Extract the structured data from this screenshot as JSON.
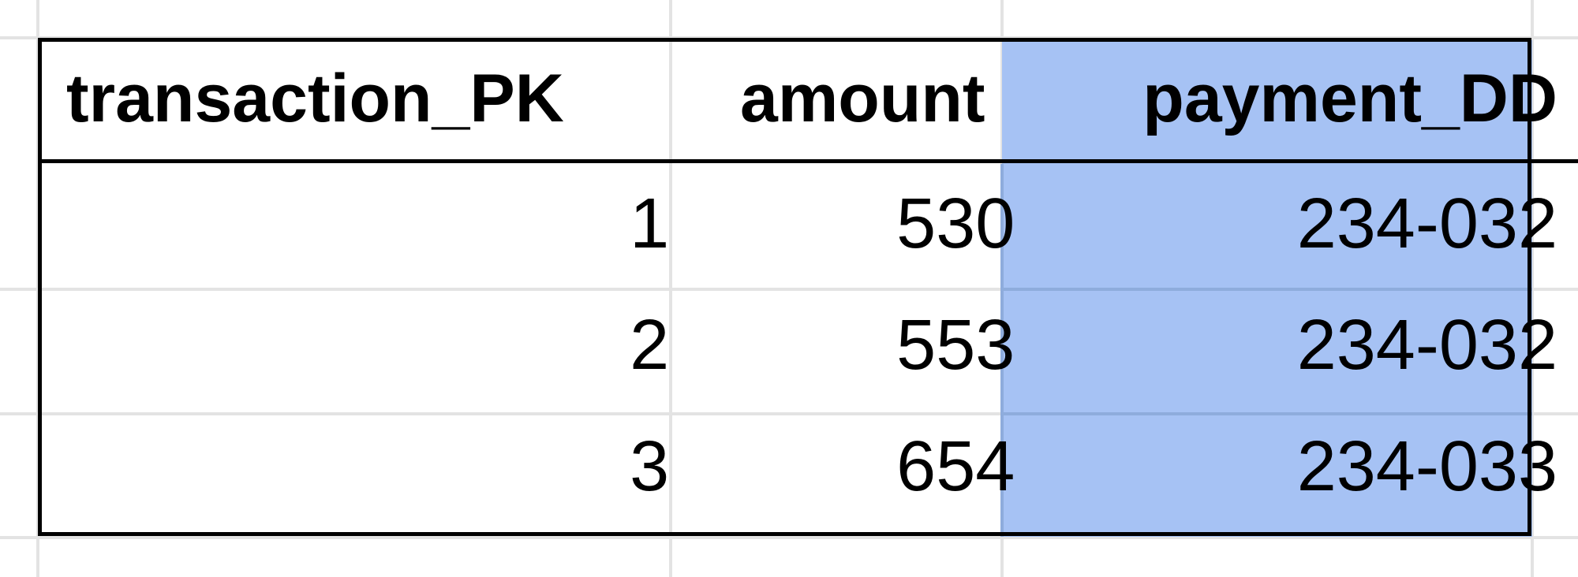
{
  "sheet": {
    "highlight_color": "#a6c2f4",
    "gridline_color": "#e3e3e3",
    "border_color": "#000000",
    "columns": [
      "transaction_PK",
      "amount",
      "payment_DD"
    ],
    "rows": [
      {
        "transaction_PK": "1",
        "amount": "530",
        "payment_DD": "234-032"
      },
      {
        "transaction_PK": "2",
        "amount": "553",
        "payment_DD": "234-032"
      },
      {
        "transaction_PK": "3",
        "amount": "654",
        "payment_DD": "234-033"
      }
    ],
    "selected_column": "payment_DD"
  }
}
